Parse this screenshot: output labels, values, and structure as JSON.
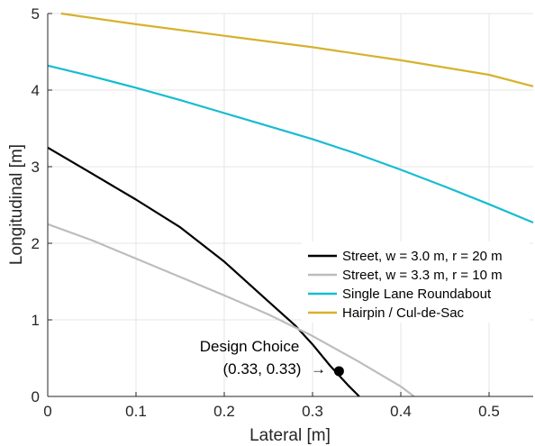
{
  "chart_data": {
    "type": "line",
    "xlabel": "Lateral [m]",
    "ylabel": "Longitudinal [m]",
    "xlim": [
      0,
      0.55
    ],
    "ylim": [
      0,
      5
    ],
    "x_ticks": [
      "0",
      "0.1",
      "0.2",
      "0.3",
      "0.4",
      "0.5"
    ],
    "x_tick_values": [
      0,
      0.1,
      0.2,
      0.3,
      0.4,
      0.5
    ],
    "y_ticks": [
      "0",
      "1",
      "2",
      "3",
      "4",
      "5"
    ],
    "y_tick_values": [
      0,
      1,
      2,
      3,
      4,
      5
    ],
    "grid": true,
    "legend_position": "bottom-right",
    "series": [
      {
        "name": "Street, w = 3.0 m, r = 20 m",
        "color": "#000000",
        "x": [
          0,
          0.05,
          0.1,
          0.15,
          0.2,
          0.25,
          0.28,
          0.3,
          0.32,
          0.34,
          0.353
        ],
        "y": [
          3.25,
          2.91,
          2.57,
          2.21,
          1.76,
          1.24,
          0.93,
          0.68,
          0.4,
          0.15,
          0
        ]
      },
      {
        "name": "Street, w = 3.3 m, r = 10 m",
        "color": "#bdbdbd",
        "x": [
          0,
          0.05,
          0.1,
          0.15,
          0.2,
          0.25,
          0.3,
          0.35,
          0.4,
          0.415
        ],
        "y": [
          2.25,
          2.04,
          1.8,
          1.56,
          1.32,
          1.07,
          0.79,
          0.47,
          0.13,
          0
        ]
      },
      {
        "name": "Single Lane Roundabout",
        "color": "#17bcd1",
        "x": [
          0,
          0.05,
          0.1,
          0.15,
          0.2,
          0.25,
          0.3,
          0.35,
          0.4,
          0.45,
          0.5,
          0.55
        ],
        "y": [
          4.32,
          4.18,
          4.03,
          3.87,
          3.7,
          3.53,
          3.36,
          3.17,
          2.96,
          2.74,
          2.51,
          2.27
        ]
      },
      {
        "name": "Hairpin / Cul-de-Sac",
        "color": "#d8b12d",
        "x": [
          0.015,
          0.1,
          0.2,
          0.3,
          0.4,
          0.5,
          0.55
        ],
        "y": [
          5.0,
          4.86,
          4.71,
          4.56,
          4.39,
          4.2,
          4.05
        ]
      }
    ],
    "annotation": {
      "line1": "Design Choice",
      "line2": "(0.33, 0.33)",
      "arrow": "→",
      "point": [
        0.33,
        0.33
      ]
    }
  }
}
